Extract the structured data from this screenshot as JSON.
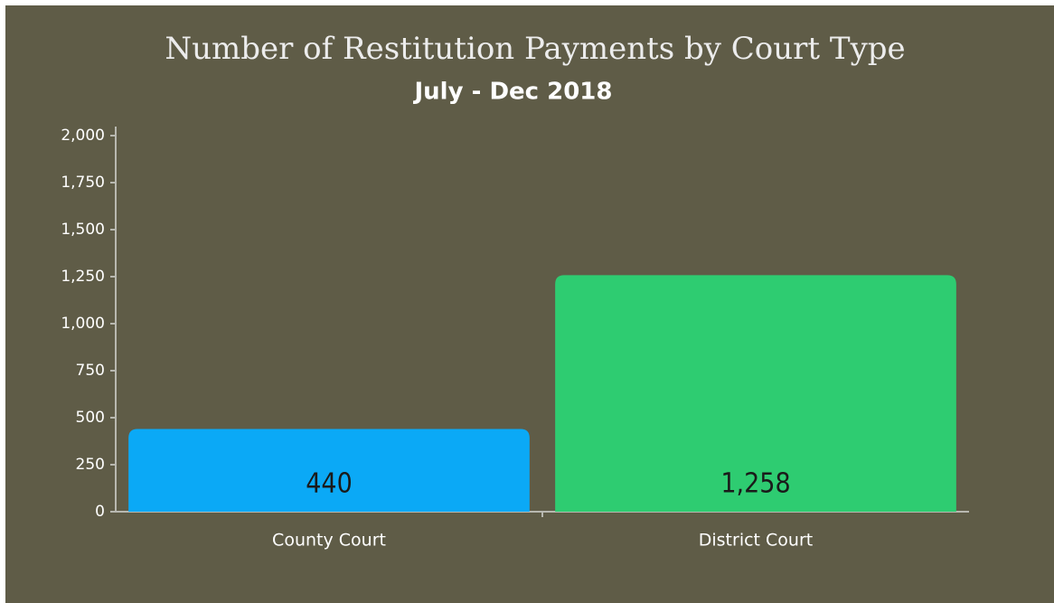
{
  "chart_data": {
    "type": "bar",
    "title": "Number of Restitution Payments by Court Type",
    "subtitle": "July - Dec 2018",
    "categories": [
      "County Court",
      "District Court"
    ],
    "values": [
      440,
      1258
    ],
    "value_labels": [
      "440",
      "1,258"
    ],
    "colors": [
      "#0ba9f6",
      "#2ecc71"
    ],
    "ylim": [
      0,
      2000
    ],
    "yticks": [
      0,
      250,
      500,
      750,
      {
        "value": 1000,
        "label": "1,000"
      },
      {
        "value": 1250,
        "label": "1,250"
      },
      {
        "value": 1500,
        "label": "1,500"
      },
      {
        "value": 1750,
        "label": "1,750"
      },
      {
        "value": 2000,
        "label": "2,000"
      }
    ],
    "grid": false
  }
}
